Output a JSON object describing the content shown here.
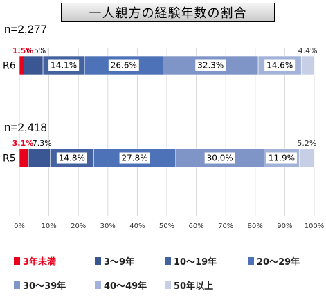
{
  "chart_data": {
    "type": "bar",
    "orientation": "horizontal",
    "stacked": true,
    "title": "一人親方の経験年数の割合",
    "categories": [
      "R6",
      "R5"
    ],
    "totals": [
      "n=2,277",
      "n=2,418"
    ],
    "series": [
      {
        "name": "3年未満",
        "color": "#e8001c",
        "values": [
          1.5,
          3.1
        ],
        "labels": [
          "1.5%",
          "3.1%"
        ]
      },
      {
        "name": "3～9年",
        "color": "#3a5794",
        "values": [
          6.5,
          7.3
        ],
        "labels": [
          "6.5%",
          "7.3%"
        ]
      },
      {
        "name": "10～19年",
        "color": "#43629f",
        "values": [
          14.1,
          14.8
        ],
        "labels": [
          "14.1%",
          "14.8%"
        ]
      },
      {
        "name": "20～29年",
        "color": "#4d72b8",
        "values": [
          26.6,
          27.8
        ],
        "labels": [
          "26.6%",
          "27.8%"
        ]
      },
      {
        "name": "30～39年",
        "color": "#7f95c7",
        "values": [
          32.3,
          30.0
        ],
        "labels": [
          "32.3%",
          "30.0%"
        ]
      },
      {
        "name": "40～49年",
        "color": "#a3b2d8",
        "values": [
          14.6,
          11.9
        ],
        "labels": [
          "14.6%",
          "11.9%"
        ]
      },
      {
        "name": "50年以上",
        "color": "#c6cfe6",
        "values": [
          4.4,
          5.2
        ],
        "labels": [
          "4.4%",
          "5.2%"
        ]
      }
    ],
    "xlim": [
      0,
      100
    ],
    "xticks": [
      "0%",
      "10%",
      "20%",
      "30%",
      "40%",
      "50%",
      "60%",
      "70%",
      "80%",
      "90%",
      "100%"
    ],
    "grid": true,
    "legend": "bottom"
  }
}
